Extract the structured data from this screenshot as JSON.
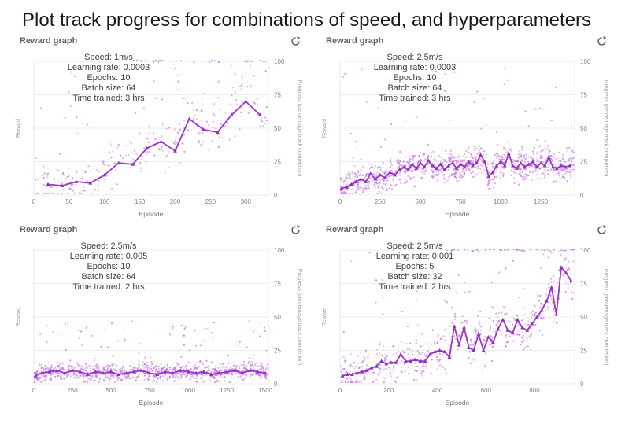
{
  "page": {
    "title": "Plot track progress for combinations of speed, and hyperparameters"
  },
  "colors": {
    "line": "#9d36c9",
    "marker": "#8e2fbe",
    "scatter": "#c273dd",
    "grid": "#ececf3",
    "plot_border": "#e6e8f2",
    "tick_text": "#80868b",
    "axis_label": "#9aa0a6",
    "xlabel_text": "#757575",
    "annotation_text": "#3c4043",
    "header_text": "#5f6368",
    "icon": "#5f6368"
  },
  "chart_data": [
    {
      "type": "scatter",
      "title": "Reward graph",
      "xlabel": "Episode",
      "ylabel_left": "Reward",
      "ylabel_right": "Progress (percentage track completion)",
      "xlim": [
        0,
        332
      ],
      "ylim": [
        0,
        100
      ],
      "x_ticks": [
        0,
        50,
        100,
        150,
        200,
        250,
        300
      ],
      "y_ticks_right": [
        0,
        25,
        50,
        75,
        100
      ],
      "grid": true,
      "legend": "none",
      "annotations": [
        "Speed: 1m/s",
        "Learning rate: 0.0003",
        "Epochs: 10",
        "Batch size: 64",
        "Time trained: 3 hrs"
      ],
      "series": [
        {
          "name": "average progress per 20 episodes",
          "type": "line",
          "points": [
            [
              20,
              8
            ],
            [
              40,
              7
            ],
            [
              60,
              10
            ],
            [
              80,
              9
            ],
            [
              100,
              15
            ],
            [
              120,
              24
            ],
            [
              140,
              23
            ],
            [
              160,
              35
            ],
            [
              180,
              40
            ],
            [
              200,
              33
            ],
            [
              220,
              57
            ],
            [
              240,
              49
            ],
            [
              260,
              47
            ],
            [
              280,
              60
            ],
            [
              300,
              70
            ],
            [
              320,
              60
            ]
          ]
        },
        {
          "name": "per-episode progress (noise cloud)",
          "type": "scatter_generated",
          "seed": 7,
          "count": 270,
          "spread": 17,
          "tail_frac": 0.16,
          "tail_max": 100,
          "top_row": {
            "x_from": 140,
            "count": 26,
            "y": 100
          }
        }
      ]
    },
    {
      "type": "scatter",
      "title": "Reward graph",
      "xlabel": "Episode",
      "ylabel_left": "Reward",
      "ylabel_right": "Progress (percentage track completion)",
      "xlim": [
        0,
        1460
      ],
      "ylim": [
        0,
        100
      ],
      "x_ticks": [
        0,
        250,
        500,
        750,
        1000,
        1250
      ],
      "y_ticks_right": [
        0,
        25,
        50,
        75,
        100
      ],
      "grid": true,
      "legend": "none",
      "annotations": [
        "Speed: 2.5m/s",
        "Learning rate: 0.0003",
        "Epochs: 10",
        "Batch size: 64",
        "Time trained: 3 hrs"
      ],
      "series": [
        {
          "name": "average progress per 25 episodes",
          "type": "line",
          "points": [
            [
              10,
              5
            ],
            [
              40,
              6
            ],
            [
              70,
              8
            ],
            [
              100,
              10
            ],
            [
              130,
              12
            ],
            [
              160,
              10
            ],
            [
              190,
              16
            ],
            [
              220,
              12
            ],
            [
              250,
              15
            ],
            [
              280,
              13
            ],
            [
              310,
              17
            ],
            [
              340,
              15
            ],
            [
              370,
              19
            ],
            [
              400,
              21
            ],
            [
              425,
              19
            ],
            [
              450,
              23
            ],
            [
              475,
              20
            ],
            [
              500,
              24
            ],
            [
              525,
              21
            ],
            [
              550,
              26
            ],
            [
              575,
              22
            ],
            [
              600,
              20
            ],
            [
              625,
              23
            ],
            [
              650,
              19
            ],
            [
              675,
              22
            ],
            [
              700,
              24
            ],
            [
              725,
              20
            ],
            [
              750,
              23
            ],
            [
              775,
              21
            ],
            [
              800,
              25
            ],
            [
              825,
              22
            ],
            [
              850,
              24
            ],
            [
              875,
              30
            ],
            [
              900,
              25
            ],
            [
              925,
              14
            ],
            [
              950,
              17
            ],
            [
              975,
              22
            ],
            [
              1000,
              25
            ],
            [
              1025,
              22
            ],
            [
              1050,
              31
            ],
            [
              1075,
              22
            ],
            [
              1100,
              20
            ],
            [
              1125,
              24
            ],
            [
              1150,
              21
            ],
            [
              1175,
              23
            ],
            [
              1200,
              25
            ],
            [
              1225,
              21
            ],
            [
              1250,
              24
            ],
            [
              1275,
              22
            ],
            [
              1300,
              28
            ],
            [
              1325,
              21
            ],
            [
              1350,
              20
            ],
            [
              1375,
              22
            ],
            [
              1400,
              21
            ],
            [
              1430,
              22
            ]
          ]
        },
        {
          "name": "per-episode progress (noise cloud)",
          "type": "scatter_generated",
          "seed": 21,
          "count": 1050,
          "spread": 11,
          "tail_frac": 0.07,
          "tail_max": 96,
          "top_row": null
        }
      ]
    },
    {
      "type": "scatter",
      "title": "Reward graph",
      "xlabel": "Episode",
      "ylabel_left": "Reward",
      "ylabel_right": "Progress (percentage track completion)",
      "xlim": [
        0,
        1520
      ],
      "ylim": [
        0,
        100
      ],
      "x_ticks": [
        0,
        250,
        500,
        750,
        1000,
        1250,
        1500
      ],
      "y_ticks_right": [
        0,
        25,
        50,
        75,
        100
      ],
      "grid": true,
      "legend": "none",
      "annotations": [
        "Speed: 2.5m/s",
        "Learning rate: 0.005",
        "Epochs: 10",
        "Batch size: 64",
        "Time trained: 2 hrs"
      ],
      "series": [
        {
          "name": "average progress per 50 episodes",
          "type": "line",
          "points": [
            [
              10,
              6
            ],
            [
              50,
              8
            ],
            [
              100,
              9
            ],
            [
              150,
              10
            ],
            [
              200,
              8
            ],
            [
              250,
              10
            ],
            [
              300,
              9
            ],
            [
              350,
              7
            ],
            [
              400,
              9
            ],
            [
              450,
              8
            ],
            [
              500,
              9
            ],
            [
              550,
              7
            ],
            [
              600,
              8
            ],
            [
              650,
              9
            ],
            [
              700,
              10
            ],
            [
              750,
              8
            ],
            [
              800,
              7
            ],
            [
              850,
              9
            ],
            [
              900,
              8
            ],
            [
              950,
              10
            ],
            [
              1000,
              9
            ],
            [
              1050,
              8
            ],
            [
              1100,
              9
            ],
            [
              1150,
              7
            ],
            [
              1200,
              8
            ],
            [
              1250,
              9
            ],
            [
              1300,
              10
            ],
            [
              1350,
              8
            ],
            [
              1400,
              10
            ],
            [
              1450,
              9
            ],
            [
              1500,
              8
            ]
          ]
        },
        {
          "name": "per-episode progress (noise cloud)",
          "type": "scatter_generated",
          "seed": 33,
          "count": 1050,
          "spread": 6.5,
          "tail_frac": 0.08,
          "tail_max": 48,
          "top_row": null
        }
      ]
    },
    {
      "type": "scatter",
      "title": "Reward graph",
      "xlabel": "Episode",
      "ylabel_left": "Reward",
      "ylabel_right": "Progress (percentage track completion)",
      "xlim": [
        0,
        965
      ],
      "ylim": [
        0,
        100
      ],
      "x_ticks": [
        0,
        200,
        400,
        600,
        800
      ],
      "y_ticks_right": [
        0,
        25,
        50,
        75,
        100
      ],
      "grid": true,
      "legend": "none",
      "annotations": [
        "Speed: 2.5m/s",
        "Learning rate: 0.001",
        "Epochs: 5",
        "Batch size: 32",
        "Time trained: 2 hrs"
      ],
      "series": [
        {
          "name": "average progress per 20 episodes",
          "type": "line",
          "points": [
            [
              10,
              6
            ],
            [
              30,
              7
            ],
            [
              50,
              7
            ],
            [
              70,
              8
            ],
            [
              90,
              9
            ],
            [
              110,
              10
            ],
            [
              130,
              12
            ],
            [
              150,
              13
            ],
            [
              170,
              17
            ],
            [
              190,
              15
            ],
            [
              210,
              16
            ],
            [
              230,
              16
            ],
            [
              250,
              22
            ],
            [
              270,
              17
            ],
            [
              290,
              17
            ],
            [
              310,
              18
            ],
            [
              330,
              17
            ],
            [
              350,
              17
            ],
            [
              370,
              22
            ],
            [
              390,
              24
            ],
            [
              410,
              25
            ],
            [
              430,
              24
            ],
            [
              450,
              20
            ],
            [
              470,
              43
            ],
            [
              490,
              29
            ],
            [
              510,
              42
            ],
            [
              530,
              27
            ],
            [
              550,
              25
            ],
            [
              570,
              37
            ],
            [
              590,
              25
            ],
            [
              610,
              35
            ],
            [
              630,
              31
            ],
            [
              650,
              41
            ],
            [
              670,
              48
            ],
            [
              690,
              40
            ],
            [
              710,
              38
            ],
            [
              730,
              48
            ],
            [
              750,
              42
            ],
            [
              770,
              40
            ],
            [
              790,
              45
            ],
            [
              810,
              50
            ],
            [
              830,
              55
            ],
            [
              850,
              62
            ],
            [
              870,
              72
            ],
            [
              890,
              52
            ],
            [
              910,
              87
            ],
            [
              930,
              83
            ],
            [
              950,
              77
            ]
          ]
        },
        {
          "name": "per-episode progress (noise cloud)",
          "type": "scatter_generated",
          "seed": 55,
          "count": 580,
          "spread": 15,
          "tail_frac": 0.1,
          "tail_max": 100,
          "top_row": {
            "x_from": 430,
            "count": 46,
            "y": 100
          }
        }
      ]
    }
  ],
  "refresh_button": {
    "label": "Refresh"
  }
}
